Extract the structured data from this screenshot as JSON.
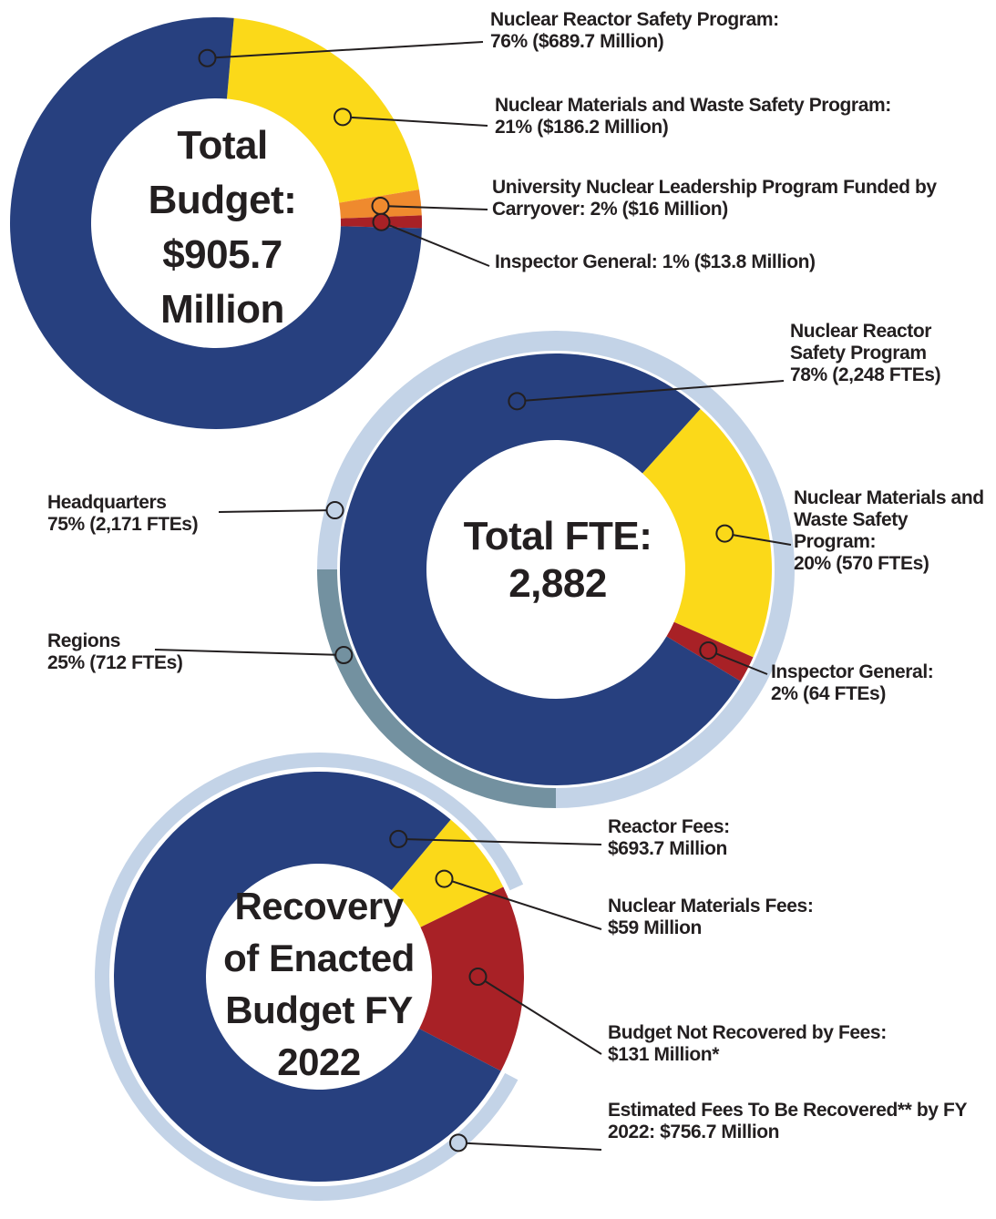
{
  "chart_data": [
    {
      "type": "donut",
      "title": "Total Budget: $905.7 Million",
      "categories": [
        "Nuclear Reactor Safety Program:",
        "Nuclear Materials and Waste Safety Program:",
        "University Nuclear Leadership Program Funded by Carryover:",
        "Inspector General:"
      ],
      "values": [
        76,
        21,
        2,
        1
      ],
      "value_labels": [
        "76% ($689.7 Million)",
        "21% ($186.2 Million)",
        "2% ($16 Million)",
        "1% ($13.8 Million)"
      ],
      "colors": [
        "#27407f",
        "#fbd919",
        "#ef8a2e",
        "#a82126"
      ]
    },
    {
      "type": "donut",
      "title": "Total FTE: 2,882",
      "categories": [
        "Nuclear Reactor Safety Program",
        "Nuclear Materials and Waste Safety Program:",
        "Inspector General:"
      ],
      "values": [
        78,
        20,
        2
      ],
      "value_labels": [
        "78% (2,248 FTEs)",
        "20% (570 FTEs)",
        "2% (64 FTEs)"
      ],
      "colors": [
        "#27407f",
        "#fbd919",
        "#a82126"
      ],
      "outer_ring": {
        "categories": [
          "Headquarters",
          "Regions"
        ],
        "values": [
          75,
          25
        ],
        "value_labels": [
          "75% (2,171 FTEs)",
          "25% (712 FTEs)"
        ],
        "colors": [
          "#c3d3e7",
          "#7391a0"
        ]
      }
    },
    {
      "type": "donut",
      "title": "Recovery of Enacted Budget FY 2022",
      "categories": [
        "Reactor Fees:",
        "Nuclear Materials Fees:",
        "Budget Not Recovered by Fees:"
      ],
      "values": [
        693.7,
        59,
        131
      ],
      "value_labels": [
        "$693.7 Million",
        "$59 Million",
        "$131 Million*"
      ],
      "colors": [
        "#27407f",
        "#fbd919",
        "#a82126"
      ],
      "outer_ring": {
        "categories": [
          "Estimated Fees To Be Recovered** by FY 2022:"
        ],
        "values": [
          756.7
        ],
        "value_labels": [
          "$756.7 Million"
        ],
        "colors": [
          "#c3d3e7"
        ]
      }
    }
  ]
}
